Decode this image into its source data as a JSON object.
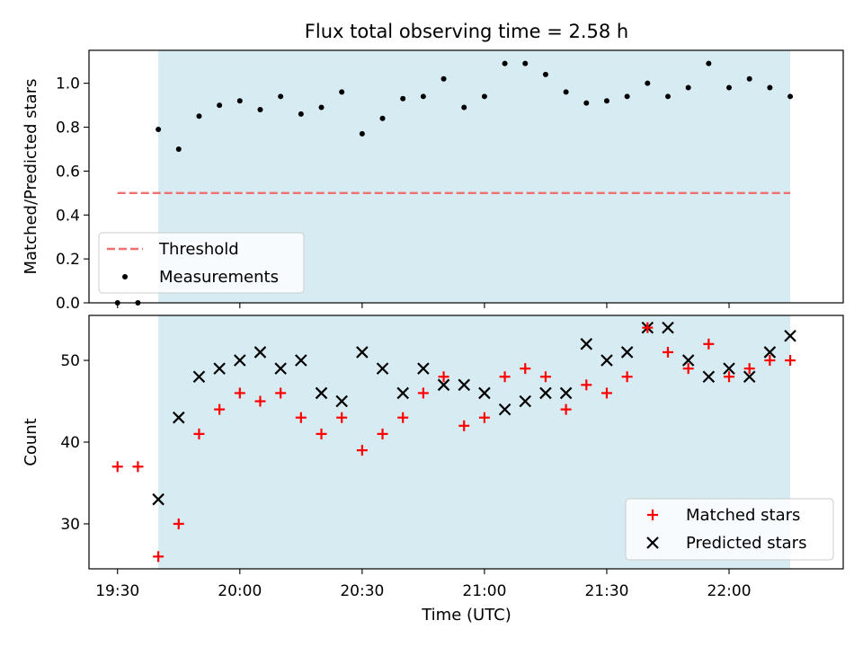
{
  "chart_data": [
    {
      "type": "scatter",
      "title": "Flux total observing time = 2.58 h",
      "xlabel": "",
      "ylabel": "Matched/Predicted stars",
      "xlim": [
        "19:23",
        "22:28"
      ],
      "ylim": [
        0,
        1.15
      ],
      "yticks": [
        0.0,
        0.2,
        0.4,
        0.6,
        0.8,
        1.0
      ],
      "ytick_labels": [
        "0.0",
        "0.2",
        "0.4",
        "0.6",
        "0.8",
        "1.0"
      ],
      "shaded_region": {
        "start": "19:40",
        "end": "22:15",
        "color": "#add8e6"
      },
      "threshold": {
        "name": "Threshold",
        "value": 0.5,
        "x_start": "19:30",
        "x_end": "22:15",
        "color": "#f07070",
        "style": "dashed"
      },
      "legend": {
        "position": "lower-left",
        "entries": [
          "Threshold",
          "Measurements"
        ]
      },
      "series": [
        {
          "name": "Measurements",
          "marker": "dot",
          "color": "#000000",
          "x": [
            "19:30",
            "19:35",
            "19:40",
            "19:45",
            "19:50",
            "19:55",
            "20:00",
            "20:05",
            "20:10",
            "20:15",
            "20:20",
            "20:25",
            "20:30",
            "20:35",
            "20:40",
            "20:45",
            "20:50",
            "20:55",
            "21:00",
            "21:05",
            "21:10",
            "21:15",
            "21:20",
            "21:25",
            "21:30",
            "21:35",
            "21:40",
            "21:45",
            "21:50",
            "21:55",
            "22:00",
            "22:05",
            "22:10",
            "22:15"
          ],
          "y": [
            0.0,
            0.0,
            0.79,
            0.7,
            0.85,
            0.9,
            0.92,
            0.88,
            0.94,
            0.86,
            0.89,
            0.96,
            0.77,
            0.84,
            0.93,
            0.94,
            1.02,
            0.89,
            0.94,
            1.09,
            1.09,
            1.04,
            0.96,
            0.91,
            0.92,
            0.94,
            1.0,
            0.94,
            0.98,
            1.09,
            0.98,
            1.02,
            0.98,
            0.94
          ]
        }
      ]
    },
    {
      "type": "scatter",
      "title": "",
      "xlabel": "Time (UTC)",
      "ylabel": "Count",
      "xlim": [
        "19:23",
        "22:28"
      ],
      "ylim": [
        24.5,
        55.5
      ],
      "yticks": [
        30,
        40,
        50
      ],
      "ytick_labels": [
        "30",
        "40",
        "50"
      ],
      "xticks": [
        "19:30",
        "20:00",
        "20:30",
        "21:00",
        "21:30",
        "22:00"
      ],
      "xtick_labels": [
        "19:30",
        "20:00",
        "20:30",
        "21:00",
        "21:30",
        "22:00"
      ],
      "shaded_region": {
        "start": "19:40",
        "end": "22:15",
        "color": "#add8e6"
      },
      "legend": {
        "position": "lower-right",
        "entries": [
          "Matched stars",
          "Predicted stars"
        ]
      },
      "series": [
        {
          "name": "Matched stars",
          "marker": "plus",
          "color": "#ff0000",
          "x": [
            "19:30",
            "19:35",
            "19:40",
            "19:45",
            "19:50",
            "19:55",
            "20:00",
            "20:05",
            "20:10",
            "20:15",
            "20:20",
            "20:25",
            "20:30",
            "20:35",
            "20:40",
            "20:45",
            "20:50",
            "20:55",
            "21:00",
            "21:05",
            "21:10",
            "21:15",
            "21:20",
            "21:25",
            "21:30",
            "21:35",
            "21:40",
            "21:45",
            "21:50",
            "21:55",
            "22:00",
            "22:05",
            "22:10",
            "22:15"
          ],
          "y": [
            37,
            37,
            26,
            30,
            41,
            44,
            46,
            45,
            46,
            43,
            41,
            43,
            39,
            41,
            43,
            46,
            48,
            42,
            43,
            48,
            49,
            48,
            44,
            47,
            46,
            48,
            54,
            51,
            49,
            52,
            48,
            49,
            50,
            50
          ]
        },
        {
          "name": "Predicted stars",
          "marker": "x",
          "color": "#000000",
          "x": [
            "19:40",
            "19:45",
            "19:50",
            "19:55",
            "20:00",
            "20:05",
            "20:10",
            "20:15",
            "20:20",
            "20:25",
            "20:30",
            "20:35",
            "20:40",
            "20:45",
            "20:50",
            "20:55",
            "21:00",
            "21:05",
            "21:10",
            "21:15",
            "21:20",
            "21:25",
            "21:30",
            "21:35",
            "21:40",
            "21:45",
            "21:50",
            "21:55",
            "22:00",
            "22:05",
            "22:10",
            "22:15"
          ],
          "y": [
            33,
            43,
            48,
            49,
            50,
            51,
            49,
            50,
            46,
            45,
            51,
            49,
            46,
            49,
            47,
            47,
            46,
            44,
            45,
            46,
            46,
            52,
            50,
            51,
            54,
            54,
            50,
            48,
            49,
            48,
            51,
            53
          ]
        }
      ]
    }
  ]
}
